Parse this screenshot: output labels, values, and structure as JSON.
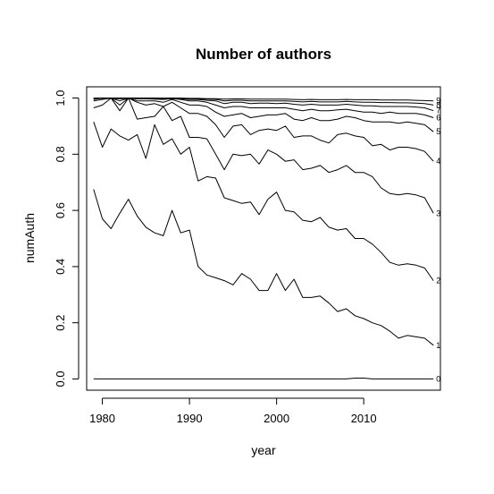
{
  "chart_data": {
    "type": "line",
    "title": "Number of authors",
    "xlabel": "year",
    "ylabel": "numAuth",
    "xlim": [
      1978.2,
      2018.8
    ],
    "ylim": [
      -0.04,
      1.04
    ],
    "xticks": [
      1980,
      1990,
      2000,
      2010
    ],
    "yticks": [
      0.0,
      0.2,
      0.4,
      0.6,
      0.8,
      1.0
    ],
    "ytick_labels": [
      "0.0",
      "0.2",
      "0.4",
      "0.6",
      "0.8",
      "1.0"
    ],
    "grid": false,
    "legend": "none",
    "x": [
      1979,
      1980,
      1981,
      1982,
      1983,
      1984,
      1985,
      1986,
      1987,
      1988,
      1989,
      1990,
      1991,
      1992,
      1993,
      1994,
      1995,
      1996,
      1997,
      1998,
      1999,
      2000,
      2001,
      2002,
      2003,
      2004,
      2005,
      2006,
      2007,
      2008,
      2009,
      2010,
      2011,
      2012,
      2013,
      2014,
      2015,
      2016,
      2017,
      2018
    ],
    "series": [
      {
        "name": "0",
        "values": [
          0.0,
          0.0,
          0.0,
          0.0,
          0.0,
          0.0,
          0.0,
          0.0,
          0.0,
          0.0,
          0.0,
          0.0,
          0.0,
          0.0,
          0.0,
          0.0,
          0.0,
          0.0,
          0.0,
          0.0,
          0.0,
          0.0,
          0.0,
          0.0,
          0.0,
          0.0,
          0.0,
          0.0,
          0.0,
          0.0,
          0.003,
          0.003,
          0.0,
          0.0,
          0.0,
          0.0,
          0.0,
          0.0,
          0.0,
          0.0
        ]
      },
      {
        "name": "1",
        "values": [
          0.675,
          0.57,
          0.535,
          0.59,
          0.64,
          0.58,
          0.54,
          0.52,
          0.51,
          0.6,
          0.52,
          0.53,
          0.4,
          0.37,
          0.36,
          0.35,
          0.335,
          0.375,
          0.355,
          0.315,
          0.315,
          0.375,
          0.315,
          0.355,
          0.29,
          0.29,
          0.295,
          0.27,
          0.24,
          0.25,
          0.225,
          0.215,
          0.2,
          0.19,
          0.17,
          0.145,
          0.155,
          0.15,
          0.145,
          0.12
        ]
      },
      {
        "name": "2",
        "values": [
          0.915,
          0.825,
          0.89,
          0.865,
          0.85,
          0.87,
          0.785,
          0.905,
          0.835,
          0.855,
          0.8,
          0.825,
          0.705,
          0.72,
          0.715,
          0.645,
          0.635,
          0.625,
          0.63,
          0.585,
          0.64,
          0.665,
          0.6,
          0.595,
          0.565,
          0.56,
          0.575,
          0.54,
          0.53,
          0.535,
          0.5,
          0.5,
          0.48,
          0.45,
          0.415,
          0.405,
          0.41,
          0.405,
          0.395,
          0.35
        ]
      },
      {
        "name": "3",
        "values": [
          0.965,
          0.975,
          1.0,
          0.955,
          1.0,
          0.925,
          0.93,
          0.935,
          0.97,
          0.92,
          0.935,
          0.86,
          0.86,
          0.855,
          0.8,
          0.745,
          0.8,
          0.795,
          0.8,
          0.765,
          0.815,
          0.8,
          0.775,
          0.78,
          0.745,
          0.75,
          0.76,
          0.735,
          0.745,
          0.76,
          0.735,
          0.735,
          0.72,
          0.68,
          0.66,
          0.655,
          0.66,
          0.655,
          0.645,
          0.59
        ]
      },
      {
        "name": "4",
        "values": [
          0.99,
          0.995,
          1.0,
          0.975,
          1.0,
          0.985,
          0.975,
          0.98,
          0.97,
          0.985,
          0.965,
          0.945,
          0.945,
          0.935,
          0.905,
          0.86,
          0.9,
          0.905,
          0.87,
          0.885,
          0.89,
          0.885,
          0.9,
          0.86,
          0.865,
          0.865,
          0.85,
          0.84,
          0.87,
          0.875,
          0.865,
          0.86,
          0.83,
          0.835,
          0.815,
          0.825,
          0.825,
          0.82,
          0.81,
          0.775
        ]
      },
      {
        "name": "5",
        "values": [
          0.995,
          1.0,
          1.0,
          0.99,
          1.0,
          0.99,
          0.99,
          0.99,
          0.985,
          0.995,
          0.985,
          0.975,
          0.975,
          0.97,
          0.95,
          0.935,
          0.94,
          0.945,
          0.93,
          0.935,
          0.94,
          0.94,
          0.945,
          0.925,
          0.92,
          0.93,
          0.92,
          0.92,
          0.925,
          0.935,
          0.93,
          0.92,
          0.915,
          0.915,
          0.915,
          0.91,
          0.915,
          0.91,
          0.905,
          0.88
        ]
      },
      {
        "name": "6",
        "values": [
          0.997,
          1.0,
          1.0,
          0.997,
          1.0,
          0.997,
          0.997,
          0.996,
          0.995,
          0.998,
          0.995,
          0.99,
          0.99,
          0.985,
          0.975,
          0.965,
          0.97,
          0.97,
          0.965,
          0.965,
          0.965,
          0.965,
          0.965,
          0.96,
          0.955,
          0.96,
          0.955,
          0.955,
          0.958,
          0.96,
          0.955,
          0.95,
          0.95,
          0.945,
          0.95,
          0.945,
          0.945,
          0.945,
          0.94,
          0.93
        ]
      },
      {
        "name": "7",
        "values": [
          0.998,
          1.0,
          1.0,
          1.0,
          1.0,
          0.999,
          0.999,
          0.999,
          0.998,
          1.0,
          0.998,
          0.995,
          0.995,
          0.992,
          0.99,
          0.98,
          0.985,
          0.985,
          0.98,
          0.982,
          0.982,
          0.98,
          0.982,
          0.978,
          0.975,
          0.978,
          0.975,
          0.975,
          0.975,
          0.978,
          0.975,
          0.972,
          0.972,
          0.97,
          0.97,
          0.97,
          0.97,
          0.968,
          0.965,
          0.955
        ]
      },
      {
        "name": "8",
        "values": [
          0.999,
          1.0,
          1.0,
          1.0,
          1.0,
          1.0,
          1.0,
          1.0,
          0.999,
          1.0,
          0.999,
          0.998,
          0.997,
          0.996,
          0.995,
          0.99,
          0.992,
          0.992,
          0.99,
          0.99,
          0.99,
          0.99,
          0.99,
          0.988,
          0.986,
          0.988,
          0.986,
          0.986,
          0.986,
          0.988,
          0.986,
          0.985,
          0.985,
          0.984,
          0.984,
          0.983,
          0.983,
          0.982,
          0.98,
          0.975
        ]
      },
      {
        "name": "9",
        "values": [
          1.0,
          1.0,
          1.0,
          1.0,
          1.0,
          1.0,
          1.0,
          1.0,
          1.0,
          1.0,
          1.0,
          0.999,
          0.999,
          0.998,
          0.998,
          0.996,
          0.997,
          0.997,
          0.996,
          0.996,
          0.996,
          0.996,
          0.996,
          0.995,
          0.994,
          0.995,
          0.994,
          0.994,
          0.994,
          0.995,
          0.994,
          0.994,
          0.994,
          0.993,
          0.993,
          0.993,
          0.993,
          0.992,
          0.991,
          0.99
        ]
      }
    ]
  }
}
